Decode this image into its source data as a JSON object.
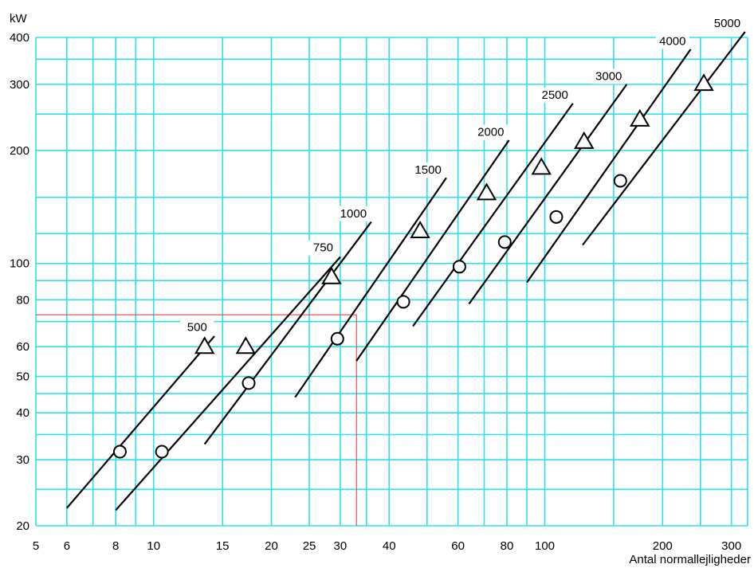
{
  "chart_data": {
    "type": "line",
    "title": "",
    "xlabel": "Antal normallejligheder",
    "ylabel": "kW",
    "x_scale": "log",
    "y_scale": "log",
    "xlim": [
      5,
      330
    ],
    "ylim": [
      20,
      400
    ],
    "grid": true,
    "legend": "none",
    "x_ticks": [
      5,
      6,
      8,
      10,
      15,
      20,
      25,
      30,
      40,
      60,
      80,
      100,
      200,
      300
    ],
    "y_ticks": [
      20,
      30,
      40,
      50,
      60,
      80,
      100,
      200,
      300,
      400
    ],
    "x_grid_values": [
      5,
      6,
      7,
      8,
      9,
      10,
      15,
      20,
      25,
      30,
      35,
      40,
      50,
      60,
      70,
      80,
      90,
      100,
      150,
      200,
      250,
      300,
      330
    ],
    "y_grid_values": [
      20,
      25,
      30,
      35,
      40,
      45,
      50,
      60,
      70,
      80,
      90,
      100,
      120,
      150,
      200,
      250,
      300,
      350,
      400
    ],
    "series": [
      {
        "name": "500",
        "line": [
          [
            6,
            22.3
          ],
          [
            14.3,
            64
          ]
        ],
        "triangle": [
          13.5,
          60
        ],
        "circle": [
          8.2,
          31.5
        ]
      },
      {
        "name": "750",
        "line": [
          [
            8,
            22
          ],
          [
            30,
            104
          ]
        ],
        "triangle": [
          28.5,
          92
        ],
        "circle": [
          17.5,
          48
        ]
      },
      {
        "name": "1000",
        "line": [
          [
            13.5,
            33
          ],
          [
            36,
            129
          ]
        ],
        "triangle": [
          17.2,
          60
        ],
        "circle": [
          29.5,
          63
        ]
      },
      {
        "name": "1500",
        "line": [
          [
            23,
            44
          ],
          [
            56,
            169
          ]
        ],
        "triangle": [
          48,
          122
        ],
        "circle": [
          10.5,
          31.5
        ]
      },
      {
        "name": "2000",
        "line": [
          [
            33,
            55
          ],
          [
            81,
            213
          ]
        ],
        "triangle": [
          71,
          154
        ],
        "circle": [
          43.5,
          79
        ]
      },
      {
        "name": "2500",
        "line": [
          [
            46,
            68
          ],
          [
            118,
            267
          ]
        ],
        "triangle": [
          98,
          180
        ],
        "circle": [
          60.5,
          98
        ]
      },
      {
        "name": "3000",
        "line": [
          [
            64,
            78
          ],
          [
            162,
            300
          ]
        ],
        "triangle": [
          126,
          211
        ],
        "circle": [
          79,
          114
        ]
      },
      {
        "name": "4000",
        "line": [
          [
            90,
            89
          ],
          [
            236,
            372
          ]
        ],
        "triangle": [
          175,
          242
        ],
        "circle": [
          107,
          133
        ]
      },
      {
        "name": "5000",
        "line": [
          [
            125,
            112
          ],
          [
            325,
            414
          ]
        ],
        "triangle": [
          255,
          301
        ],
        "circle": [
          156,
          166
        ]
      }
    ],
    "reading_line": {
      "x": 33,
      "y": 73
    },
    "colors": {
      "grid": "#2EE0EC",
      "series": "#000000",
      "reading_line": "#E03030",
      "background": "#FFFFFF"
    }
  }
}
